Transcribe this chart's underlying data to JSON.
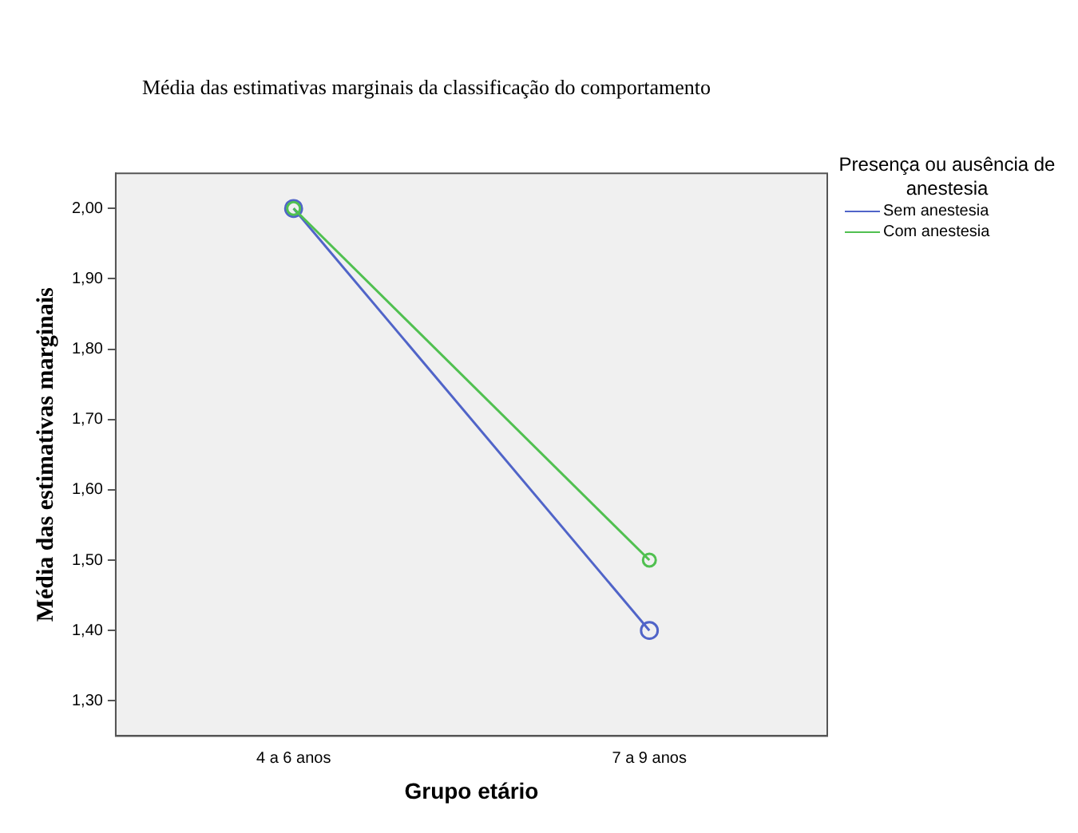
{
  "chart_data": {
    "type": "line",
    "title": "Média das estimativas marginais da classificação do comportamento",
    "xlabel": "Grupo etário",
    "ylabel": "Média das estimativas marginais",
    "legend_title": "Presença ou ausência de anestesia",
    "categories": [
      "4 a 6 anos",
      "7 a 9 anos"
    ],
    "series": [
      {
        "name": "Sem anestesia",
        "color": "#5064c8",
        "values": [
          2.0,
          1.4
        ]
      },
      {
        "name": "Com anestesia",
        "color": "#50c050",
        "values": [
          2.0,
          1.5
        ]
      }
    ],
    "ylim": [
      1.25,
      2.05
    ],
    "yticks": [
      {
        "value": 1.3,
        "label": "1,30"
      },
      {
        "value": 1.4,
        "label": "1,40"
      },
      {
        "value": 1.5,
        "label": "1,50"
      },
      {
        "value": 1.6,
        "label": "1,60"
      },
      {
        "value": 1.7,
        "label": "1,70"
      },
      {
        "value": 1.8,
        "label": "1,80"
      },
      {
        "value": 1.9,
        "label": "1,90"
      },
      {
        "value": 2.0,
        "label": "2,00"
      }
    ],
    "grid": false,
    "legend": "top right",
    "marker": "circle",
    "line_style": "solid"
  }
}
